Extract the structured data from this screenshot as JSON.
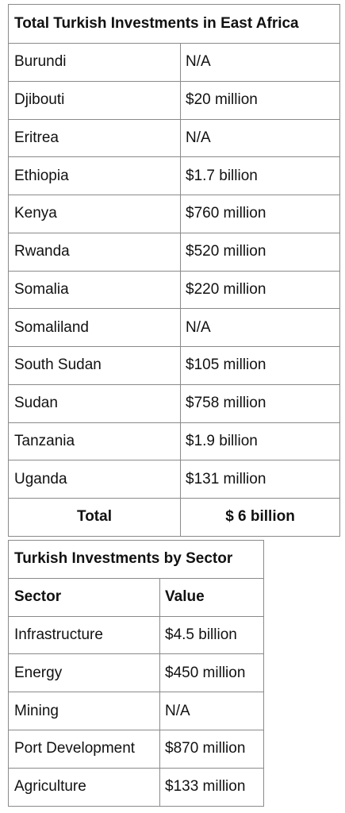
{
  "countries_table": {
    "title": "Total Turkish Investments in East Africa",
    "rows": [
      {
        "country": "Burundi",
        "value": "N/A"
      },
      {
        "country": "Djibouti",
        "value": "$20 million"
      },
      {
        "country": "Eritrea",
        "value": "N/A"
      },
      {
        "country": "Ethiopia",
        "value": "$1.7 billion"
      },
      {
        "country": "Kenya",
        "value": "$760 million"
      },
      {
        "country": "Rwanda",
        "value": "$520 million"
      },
      {
        "country": "Somalia",
        "value": "$220 million"
      },
      {
        "country": "Somaliland",
        "value": "N/A"
      },
      {
        "country": "South Sudan",
        "value": "$105 million"
      },
      {
        "country": "Sudan",
        "value": "$758 million"
      },
      {
        "country": "Tanzania",
        "value": "$1.9 billion"
      },
      {
        "country": "Uganda",
        "value": "$131 million"
      }
    ],
    "total_label": "Total",
    "total_value": "$ 6 billion"
  },
  "sector_table": {
    "title": "Turkish Investments by Sector",
    "header": {
      "sector": "Sector",
      "value": "Value"
    },
    "rows": [
      {
        "sector": "Infrastructure",
        "value": "$4.5 billion"
      },
      {
        "sector": "Energy",
        "value": "$450 million"
      },
      {
        "sector": "Mining",
        "value": "N/A"
      },
      {
        "sector": "Port Development",
        "value": "$870 million"
      },
      {
        "sector": "Agriculture",
        "value": "$133 million"
      }
    ]
  }
}
